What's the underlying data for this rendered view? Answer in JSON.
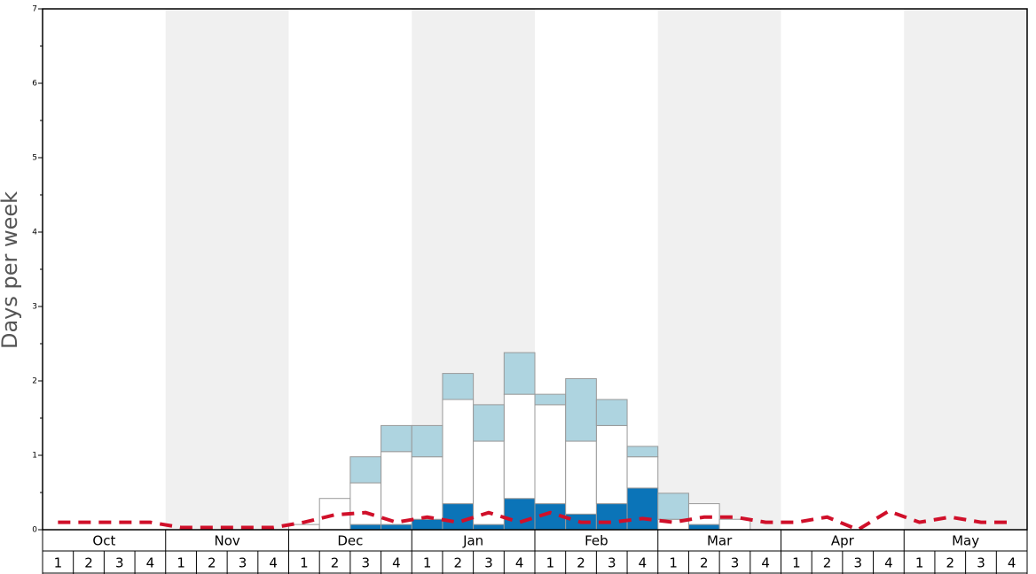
{
  "chart_data": {
    "type": "bar",
    "stacked": true,
    "y_label": "Days per week",
    "months": [
      "Oct",
      "Nov",
      "Dec",
      "Jan",
      "Feb",
      "Mar",
      "Apr",
      "May"
    ],
    "categories": [
      "1",
      "2",
      "3",
      "4",
      "1",
      "2",
      "3",
      "4",
      "1",
      "2",
      "3",
      "4",
      "1",
      "2",
      "3",
      "4",
      "1",
      "2",
      "3",
      "4",
      "1",
      "2",
      "3",
      "4",
      "1",
      "2",
      "3",
      "4",
      "1",
      "2",
      "3",
      "4"
    ],
    "ylim": [
      0,
      7
    ],
    "yticks": [
      0,
      1,
      2,
      3,
      4,
      5,
      6,
      7
    ],
    "band_colors": [
      "#ffffff",
      "#f0f0f0"
    ],
    "series": [
      {
        "color": "#0b74b8",
        "values": [
          0,
          0,
          0,
          0,
          0,
          0,
          0,
          0,
          0,
          0,
          0.07,
          0.07,
          0.14,
          0.35,
          0.07,
          0.42,
          0.35,
          0.21,
          0.35,
          0.56,
          0,
          0.07,
          0,
          0,
          0,
          0,
          0,
          0,
          0,
          0,
          0,
          0
        ]
      },
      {
        "color": "#ffffff",
        "values": [
          0,
          0,
          0,
          0,
          0,
          0,
          0,
          0,
          0.07,
          0.42,
          0.56,
          0.98,
          0.84,
          1.4,
          1.12,
          1.4,
          1.33,
          0.98,
          1.05,
          0.42,
          0.14,
          0.28,
          0.14,
          0,
          0,
          0,
          0,
          0,
          0,
          0,
          0,
          0
        ]
      },
      {
        "color": "#aed4e0",
        "values": [
          0,
          0,
          0,
          0,
          0,
          0,
          0,
          0,
          0,
          0,
          0.35,
          0.35,
          0.42,
          0.35,
          0.49,
          0.56,
          0.14,
          0.84,
          0.35,
          0.14,
          0.35,
          0,
          0,
          0,
          0,
          0,
          0,
          0,
          0,
          0,
          0,
          0
        ]
      },
      {
        "type": "line",
        "color": "#d0102a",
        "dashed": true,
        "values": [
          0.1,
          0.1,
          0.1,
          0.1,
          0.03,
          0.03,
          0.03,
          0.03,
          0.1,
          0.2,
          0.23,
          0.1,
          0.17,
          0.1,
          0.23,
          0.1,
          0.23,
          0.1,
          0.1,
          0.15,
          0.1,
          0.17,
          0.17,
          0.1,
          0.1,
          0.17,
          0.0,
          0.25,
          0.1,
          0.17,
          0.1,
          0.1
        ]
      }
    ]
  }
}
